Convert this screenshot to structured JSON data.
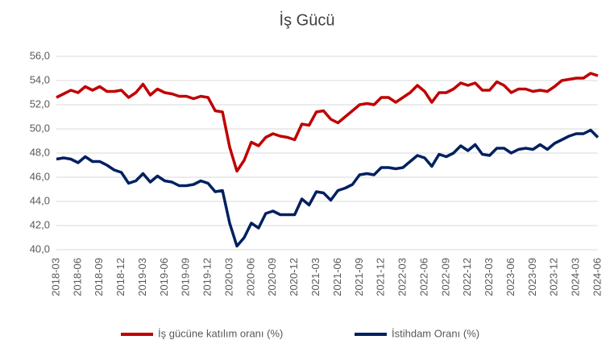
{
  "chart_data": {
    "type": "line",
    "title": "İş Gücü",
    "categories": [
      "2018-03",
      null,
      null,
      "2018-06",
      null,
      null,
      "2018-09",
      null,
      null,
      "2018-12",
      null,
      null,
      "2019-03",
      null,
      null,
      "2019-06",
      null,
      null,
      "2019-09",
      null,
      null,
      "2019-12",
      null,
      null,
      "2020-03",
      null,
      null,
      "2020-06",
      null,
      null,
      "2020-09",
      null,
      null,
      "2020-12",
      null,
      null,
      "2021-03",
      null,
      null,
      "2021-06",
      null,
      null,
      "2021-09",
      null,
      null,
      "2021-12",
      null,
      null,
      "2022-03",
      null,
      null,
      "2022-06",
      null,
      null,
      "2022-09",
      null,
      null,
      "2022-12",
      null,
      null,
      "2023-03",
      null,
      null,
      "2023-06",
      null,
      null,
      "2023-09",
      null,
      null,
      "2023-12",
      null,
      null,
      "2024-03",
      null,
      null,
      "2024-06"
    ],
    "series": [
      {
        "name": "İş gücüne katılım oranı (%)",
        "color": "#c00000",
        "values": [
          52.6,
          52.9,
          53.2,
          53.0,
          53.5,
          53.2,
          53.5,
          53.1,
          53.1,
          53.2,
          52.6,
          53.0,
          53.7,
          52.8,
          53.3,
          53.0,
          52.9,
          52.7,
          52.7,
          52.5,
          52.7,
          52.6,
          51.5,
          51.4,
          48.5,
          46.5,
          47.4,
          48.9,
          48.6,
          49.3,
          49.6,
          49.4,
          49.3,
          49.1,
          50.4,
          50.3,
          51.4,
          51.5,
          50.8,
          50.5,
          51.0,
          51.5,
          52.0,
          52.1,
          52.0,
          52.6,
          52.6,
          52.2,
          52.6,
          53.0,
          53.6,
          53.1,
          52.2,
          53.0,
          53.0,
          53.3,
          53.8,
          53.6,
          53.8,
          53.2,
          53.2,
          53.9,
          53.6,
          53.0,
          53.3,
          53.3,
          53.1,
          53.2,
          53.1,
          53.5,
          54.0,
          54.1,
          54.2,
          54.2,
          54.6,
          54.4
        ]
      },
      {
        "name": "İstihdam Oranı (%)",
        "color": "#002060",
        "values": [
          47.5,
          47.6,
          47.5,
          47.2,
          47.7,
          47.3,
          47.3,
          47.0,
          46.6,
          46.4,
          45.5,
          45.7,
          46.3,
          45.6,
          46.1,
          45.7,
          45.6,
          45.3,
          45.3,
          45.4,
          45.7,
          45.5,
          44.8,
          44.9,
          42.2,
          40.3,
          41.0,
          42.2,
          41.8,
          43.0,
          43.2,
          42.9,
          42.9,
          42.9,
          44.2,
          43.7,
          44.8,
          44.7,
          44.1,
          44.9,
          45.1,
          45.4,
          46.2,
          46.3,
          46.2,
          46.8,
          46.8,
          46.7,
          46.8,
          47.3,
          47.8,
          47.6,
          46.9,
          47.9,
          47.7,
          48.0,
          48.6,
          48.2,
          48.7,
          47.9,
          47.8,
          48.4,
          48.4,
          48.0,
          48.3,
          48.4,
          48.3,
          48.7,
          48.3,
          48.8,
          49.1,
          49.4,
          49.6,
          49.6,
          49.9,
          49.3
        ]
      }
    ],
    "ylim": [
      40,
      56
    ],
    "yticks": [
      {
        "value": 40,
        "label": "40,0"
      },
      {
        "value": 42,
        "label": "42,0"
      },
      {
        "value": 44,
        "label": "44,0"
      },
      {
        "value": 46,
        "label": "46,0"
      },
      {
        "value": 48,
        "label": "48,0"
      },
      {
        "value": 50,
        "label": "50,0"
      },
      {
        "value": 52,
        "label": "52,0"
      },
      {
        "value": 54,
        "label": "54,0"
      },
      {
        "value": 56,
        "label": "56,0"
      }
    ],
    "grid": true,
    "legend": "bottom"
  }
}
